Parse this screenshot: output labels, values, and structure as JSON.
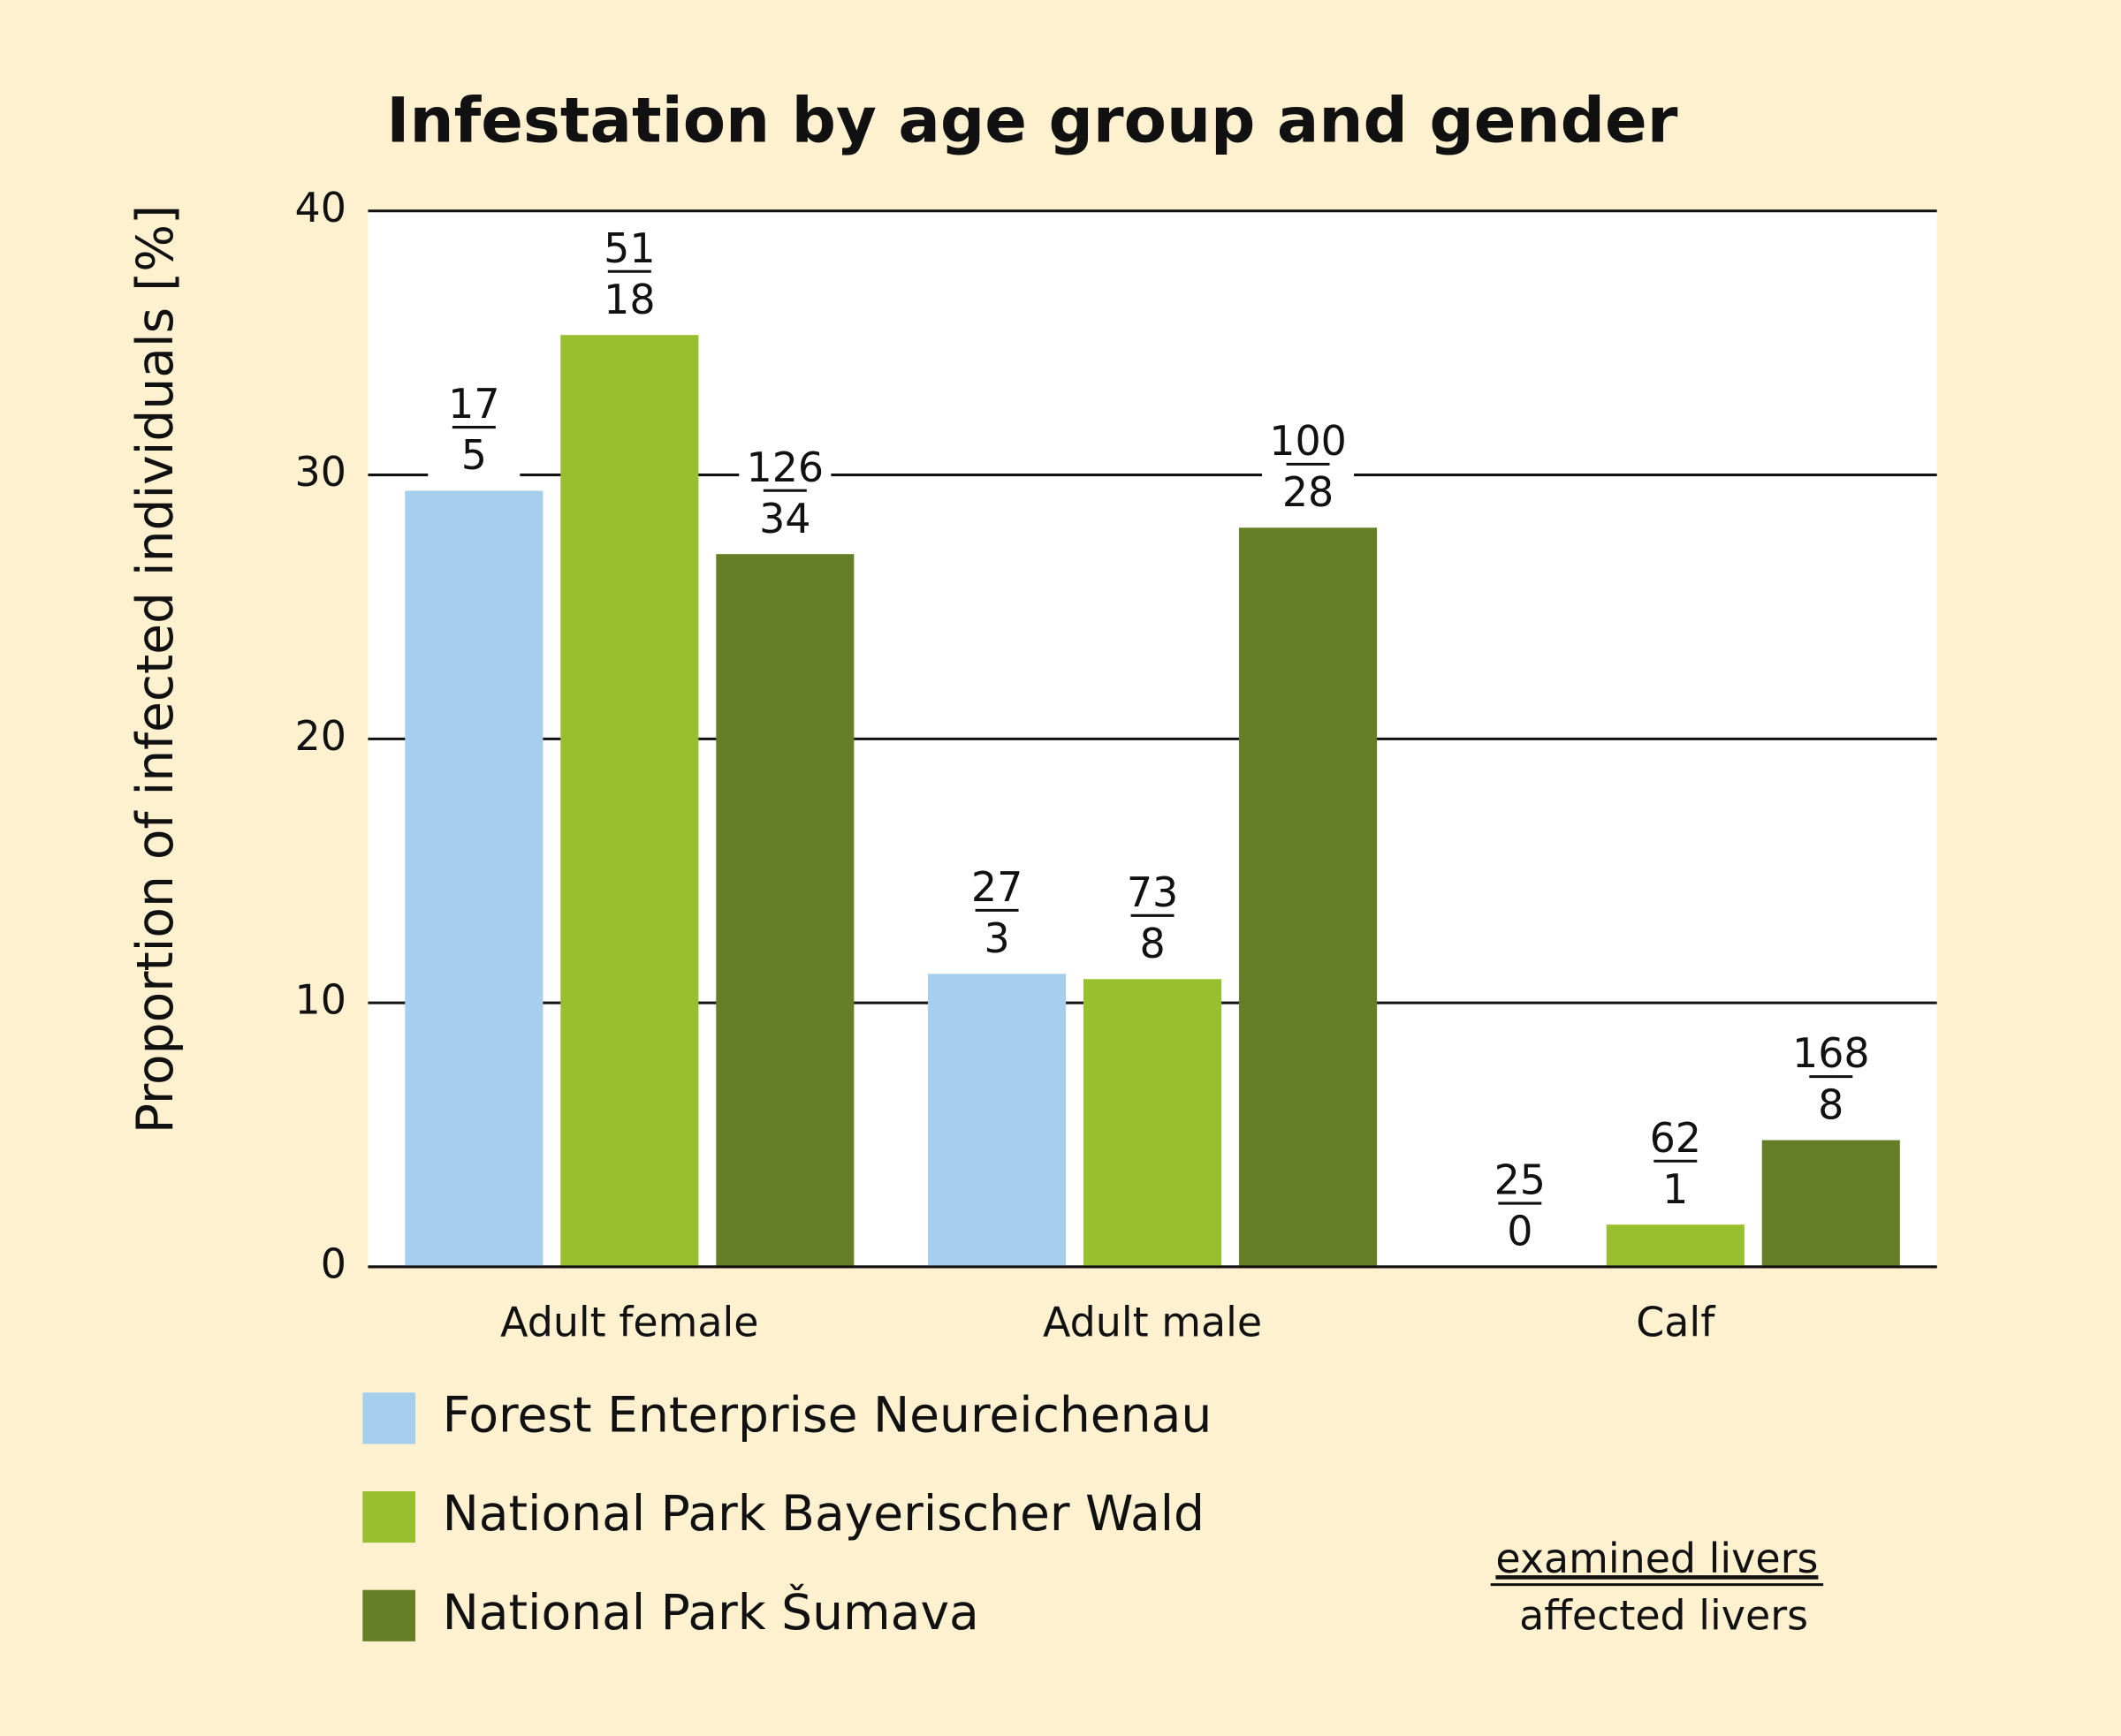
{
  "chart_data": {
    "type": "bar",
    "title": "Infestation by age group and gender",
    "y_label": "Proportion of infected individuals [%]",
    "categories": [
      "Adult female",
      "Adult male",
      "Calf"
    ],
    "series": [
      {
        "name": "Forest Enterprise Neureichenau",
        "color": "#a6cfee",
        "values": [
          29.4,
          11.1,
          0
        ],
        "examined": [
          17,
          27,
          25
        ],
        "affected": [
          5,
          3,
          0
        ]
      },
      {
        "name": "National Park Bayerischer Wald",
        "color": "#98bf2f",
        "values": [
          35.3,
          10.9,
          1.6
        ],
        "examined": [
          51,
          73,
          62
        ],
        "affected": [
          18,
          8,
          1
        ]
      },
      {
        "name": "National Park Šumava",
        "color": "#667f27",
        "values": [
          27.0,
          28.0,
          4.8
        ],
        "examined": [
          126,
          100,
          168
        ],
        "affected": [
          34,
          28,
          8
        ]
      }
    ],
    "ylim": [
      0,
      40
    ],
    "yticks": [
      0,
      10,
      20,
      30,
      40
    ],
    "grid": true,
    "key": {
      "top": "examined livers",
      "bottom": "affected livers"
    }
  }
}
